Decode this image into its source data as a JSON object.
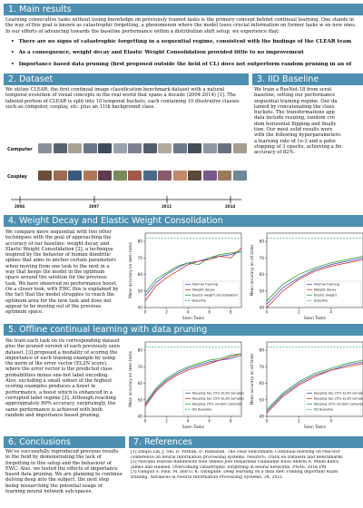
{
  "sections": {
    "main_results": {
      "title": "1. Main results",
      "intro": "Learning consecutive tasks without losing knowledge on previously trained tasks is the primary concept behind continual learning. One stands in the way of this goal is known as catastrophic forgetting, a phenomenon where the model loses crucial information on former tasks w on new ones. In our efforts of advancing towards the baseline performance within a distribution shift setup, we experience that:",
      "bullets": [
        "There are no signs of catastrophic forgetting in a sequential regime, consistent with the findings of the CLEAR team",
        "As a consequence, weight decay and Elastic Weight Consolidation provided little to no improvement",
        "Importance based data pruning (first proposed outside the field of CL) does not outperform random pruning in an of"
      ]
    },
    "dataset": {
      "title": "2. Dataset",
      "text": "We utilize CLEAR, the first continual image classification benchmark dataset with a natural temporal evolution of visual concepts in the real world that spans a decade (2004-2014) [1]. The labeled portion of CLEAR is split into 10 temporal buckets, each containing 10 illustrative classes such as computer, cosplay, etc. plus an 11th background class.",
      "row_labels": [
        "Computer",
        "Cosplay"
      ],
      "years": [
        "2004",
        "2007",
        "2011",
        "2014"
      ]
    },
    "iid": {
      "title": "3. IID Baseline",
      "lines": [
        "We train a ResNet-18 from scrat",
        "baseline, setting our performance",
        "sequential training regime. Our da",
        "tained by concatenating the class",
        "buckets. The transformations app",
        "data include resizing, random cro",
        "dom horizontal flipping and finally",
        "tion. Our most solid results were",
        "with the following hyperparameters:",
        "a learning rate of 1e-3 and a patie",
        "stopping of 3 epochs, achieving a fin",
        "accuracy of 82%."
      ]
    },
    "wd": {
      "title": "4. Weight Decay and Elastic Weight Consolidation",
      "text": "We compare mere sequential with two other techniques with the goal of approaching the accuracy of our baseline: weight decay and Elastic Weight Consolidation [2], a technique inspired by the behavior of human dendritic spines that aims to anchor certain parameters when moving from one task to the next in a way that keeps the model in the optimum space around the solution for the previous task. We have observed no performance boost. On a closer look, with EWC this is explained by the fact that the model struggles to reach the optimum area for the new task and does not appear to be moving out of the previous optimum space."
    },
    "pruning": {
      "title": "5. Offline continual learning with data pruning",
      "text": "We train each task on its corresponding dataset plus the pruned version of each previously seen dataset. [3] proposed a modality of scoring the importance of each training example by using the norm of the error vector (EL2N score), where the error vector is the predicted class probabilities minus one-hot label encoding. Also, excluding a small subset of the highest scoring examples produces a boost in performance, a boost which is enhanced in a corrupted label regime [3]. Although reaching approximately 80% accuracy, surprisingly, the same performance is achieved with both random and importance based pruning."
    },
    "conclusions": {
      "title": "6. Conclusions",
      "text": "We've successfully reproduced previous results in the field by demonstrating the lack of forgetting in this setup and the behaviour of EWC. Also, we tested the effects of importance based data pruning. We are planning to continue delving deep into the subject, the next step being researching the potential usage of learning neural network sub-spaces."
    },
    "references": {
      "title": "7. References",
      "lines": [
        "[1]  Zhiqiu Lin, J. Shi, D. Pathak, D. Ramanan. The clear benchmark: Continual learning on real-wor",
        "      conference on neural information processing systems. NeurIPS, Track on Datasets and Benchmarks",
        "[2]  Pascanu Razvan Rabinowitz Neil Veness Joel Desjardins Guillaume Rusu Andrei A. Milan Kiera",
        "      James and Hadsell. Overcoming catastrophic forgetting in neural networks. PNAS, 2016 PM",
        "[3]  Ganguli S. Paul, M. and G. K. Dziugaite. Deep learning on a data diet: Finding important exam",
        "      training. Advances in Neural Information Processing Systems, 34, 2021."
      ]
    }
  },
  "chart_data": [
    {
      "type": "line",
      "xlabel": "Seen Tasks",
      "ylabel": "Mean accuracy on seen tasks",
      "ylim": [
        40,
        85
      ],
      "yticks": [
        40,
        50,
        60,
        70,
        80
      ],
      "xticks": [
        0,
        2,
        4,
        6,
        8
      ],
      "x": [
        0,
        1,
        2,
        3,
        4,
        5,
        6,
        7,
        8,
        9
      ],
      "series": [
        {
          "name": "Normal training",
          "color": "#3a4fc4",
          "values": [
            47,
            55,
            60,
            64,
            67,
            68,
            70,
            71,
            72,
            74
          ]
        },
        {
          "name": "Weight decay",
          "color": "#d62728",
          "values": [
            44,
            53,
            58,
            62,
            66,
            68,
            69,
            71,
            70,
            76
          ]
        },
        {
          "name": "Elastic weight consolidation",
          "color": "#2ca02c",
          "values": [
            49,
            57,
            61,
            65,
            67,
            66,
            70,
            72,
            73,
            74
          ]
        },
        {
          "name": "Baseline",
          "color": "#3aa0a0",
          "dashed": true,
          "values": [
            82,
            82,
            82,
            82,
            82,
            82,
            82,
            82,
            82,
            82
          ]
        }
      ]
    },
    {
      "type": "line",
      "xlabel": "Seen Tasks",
      "ylabel": "Mean accuracy on all tasks",
      "ylim": [
        40,
        85
      ],
      "yticks": [
        40,
        50,
        60,
        70,
        80
      ],
      "xticks": [
        0,
        2,
        4
      ],
      "x": [
        0,
        1,
        2,
        3,
        4,
        5,
        6
      ],
      "series": [
        {
          "name": "Normal training",
          "color": "#3a4fc4",
          "values": [
            42,
            52,
            58,
            63,
            66,
            68,
            70
          ]
        },
        {
          "name": "Weight decay",
          "color": "#d62728",
          "values": [
            40,
            50,
            57,
            62,
            65,
            67,
            69
          ]
        },
        {
          "name": "Elastic weight",
          "color": "#2ca02c",
          "values": [
            44,
            54,
            60,
            64,
            67,
            69,
            71
          ]
        },
        {
          "name": "Baseline",
          "color": "#3aa0a0",
          "dashed": true,
          "values": [
            82,
            82,
            82,
            82,
            82,
            82,
            82
          ]
        }
      ]
    },
    {
      "type": "line",
      "xlabel": "Seen Tasks",
      "ylabel": "Mean accuracy on seen tasks",
      "ylim": [
        40,
        85
      ],
      "yticks": [
        40,
        50,
        60,
        70,
        80
      ],
      "xticks": [
        0,
        2,
        4,
        6,
        8
      ],
      "x": [
        0,
        1,
        2,
        3,
        4,
        5,
        6,
        7,
        8,
        9
      ],
      "series": [
        {
          "name": "Keeping top 25% EL2N samples",
          "color": "#3a4fc4",
          "values": [
            47,
            56,
            62,
            66,
            69,
            71,
            73,
            74,
            75,
            77
          ]
        },
        {
          "name": "Keeping top 25% EL2N samples (w/o top 1%)",
          "color": "#d62728",
          "values": [
            46,
            55,
            61,
            65,
            68,
            70,
            72,
            74,
            76,
            78
          ]
        },
        {
          "name": "Keeping 25% random samples",
          "color": "#2ca02c",
          "values": [
            48,
            57,
            63,
            67,
            70,
            72,
            74,
            75,
            77,
            78
          ]
        },
        {
          "name": "IID Baseline",
          "color": "#3aa0a0",
          "dashed": true,
          "values": [
            82,
            82,
            82,
            82,
            82,
            82,
            82,
            82,
            82,
            82
          ]
        }
      ]
    },
    {
      "type": "line",
      "xlabel": "Seen Tasks",
      "ylabel": "Mean accuracy on all tasks",
      "ylim": [
        40,
        85
      ],
      "yticks": [
        40,
        50,
        60,
        70,
        80
      ],
      "xticks": [
        0,
        2,
        4
      ],
      "x": [
        0,
        1,
        2,
        3,
        4,
        5,
        6
      ],
      "series": [
        {
          "name": "Keeping top 25% EL2N samples",
          "color": "#3a4fc4",
          "values": [
            43,
            53,
            60,
            65,
            68,
            71,
            73
          ]
        },
        {
          "name": "Keeping top 25% EL2N samples",
          "color": "#d62728",
          "values": [
            42,
            52,
            59,
            64,
            68,
            70,
            72
          ]
        },
        {
          "name": "Keeping 25% random samples",
          "color": "#2ca02c",
          "values": [
            44,
            54,
            61,
            66,
            69,
            72,
            74
          ]
        },
        {
          "name": "IID Baseline",
          "color": "#3aa0a0",
          "dashed": true,
          "values": [
            82,
            82,
            82,
            82,
            82,
            82,
            82
          ]
        }
      ]
    }
  ]
}
